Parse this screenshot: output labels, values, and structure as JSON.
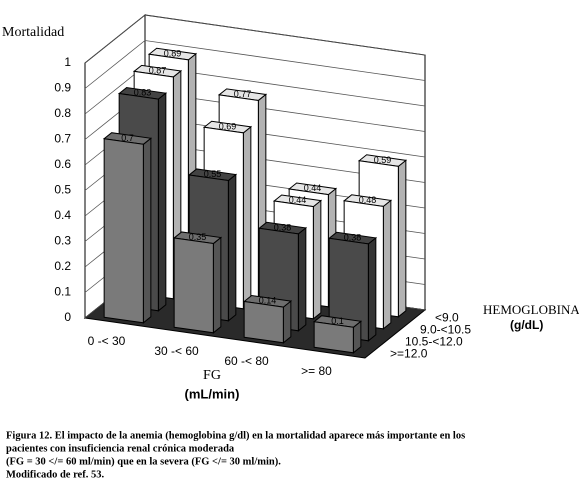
{
  "chart_data": {
    "type": "bar3d",
    "y_label": "Mortalidad",
    "x_label": "FG",
    "x_unit": "(mL/min)",
    "z_label": "HEMOGLOBINA",
    "z_unit": "(g/dL)",
    "categories": [
      "0 -< 30",
      "30 -< 60",
      "60 -< 80",
      ">= 80"
    ],
    "series": [
      {
        "name": "<9.0",
        "color": "#ffffff",
        "values": [
          0.89,
          0.77,
          0.44,
          0.59
        ]
      },
      {
        "name": "9.0-<10.5",
        "color": "#ffffff",
        "values": [
          0.87,
          0.69,
          0.44,
          0.48
        ]
      },
      {
        "name": "10.5-<12.0",
        "color": "#4a4a4a",
        "values": [
          0.83,
          0.55,
          0.38,
          0.38
        ]
      },
      {
        "name": ">=12.0",
        "color": "#7a7a7a",
        "values": [
          0.7,
          0.35,
          0.14,
          0.1
        ]
      }
    ],
    "ylim": [
      0,
      1
    ],
    "yticks": [
      0,
      0.1,
      0.2,
      0.3,
      0.4,
      0.5,
      0.6,
      0.7,
      0.8,
      0.9,
      1
    ],
    "grid": true
  },
  "caption": [
    "Figura 12. El impacto de la anemia (hemoglobina g/dl) en la mortalidad aparece más importante en los",
    "pacientes con insuficiencia renal crónica moderada",
    "(FG = 30 </=  60 ml/min) que en la severa (FG </=  30 ml/min).",
    "Modificado de ref. 53."
  ]
}
